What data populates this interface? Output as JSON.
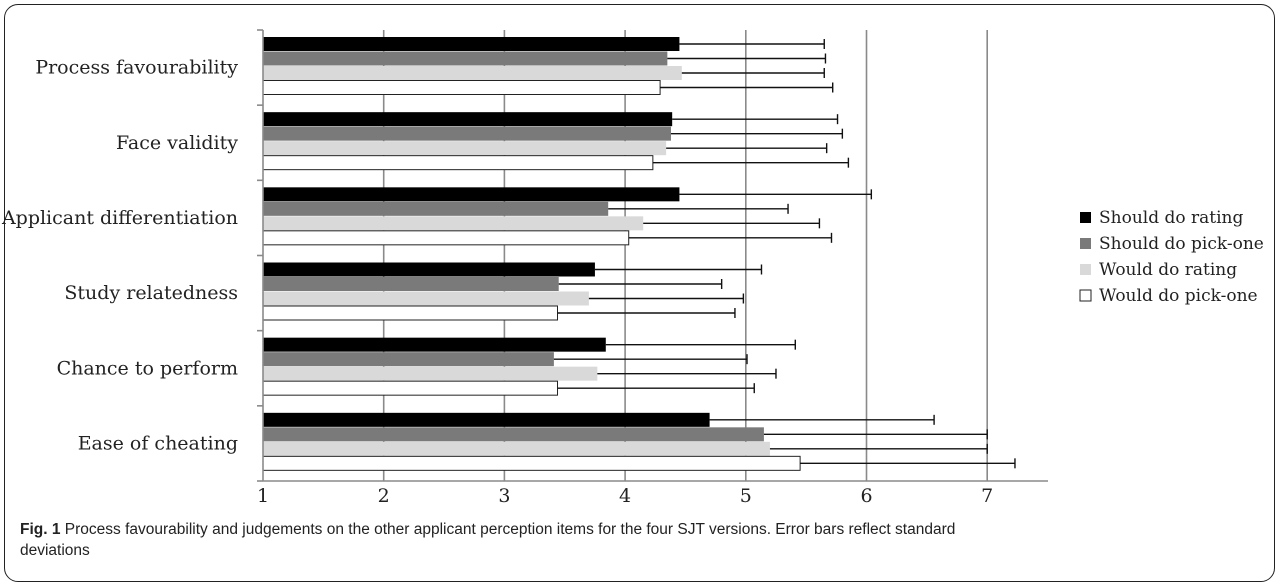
{
  "chart_data": {
    "type": "bar",
    "orientation": "horizontal",
    "categories": [
      "Process favourability",
      "Face validity",
      "Applicant differentiation",
      "Study relatedness",
      "Chance to perform",
      "Ease of cheating"
    ],
    "series": [
      {
        "name": "Should do rating",
        "color": "#000000",
        "values": [
          4.45,
          4.39,
          4.45,
          3.75,
          3.84,
          4.7
        ],
        "sd": [
          1.2,
          1.37,
          1.59,
          1.38,
          1.57,
          1.86
        ]
      },
      {
        "name": "Should do pick-one",
        "color": "#7a7a7a",
        "values": [
          4.35,
          4.38,
          3.86,
          3.45,
          3.41,
          5.15
        ],
        "sd": [
          1.31,
          1.42,
          1.49,
          1.35,
          1.6,
          1.85
        ]
      },
      {
        "name": "Would do rating",
        "color": "#d9d9d9",
        "values": [
          4.47,
          4.34,
          4.15,
          3.7,
          3.77,
          5.2
        ],
        "sd": [
          1.18,
          1.33,
          1.46,
          1.28,
          1.48,
          1.8
        ]
      },
      {
        "name": "Would do pick-one",
        "color": "#ffffff",
        "values": [
          4.29,
          4.23,
          4.03,
          3.44,
          3.44,
          5.45
        ],
        "sd": [
          1.43,
          1.62,
          1.68,
          1.47,
          1.63,
          1.78
        ]
      }
    ],
    "xlim": [
      1,
      7.5
    ],
    "xticks": [
      "1",
      "2",
      "3",
      "4",
      "5",
      "6",
      "7"
    ],
    "grid": true,
    "legend": "right",
    "caption_label": "Fig. 1",
    "caption_text": "Process favourability and judgements on the other applicant perception items for the four SJT versions. Error bars reflect standard deviations"
  }
}
